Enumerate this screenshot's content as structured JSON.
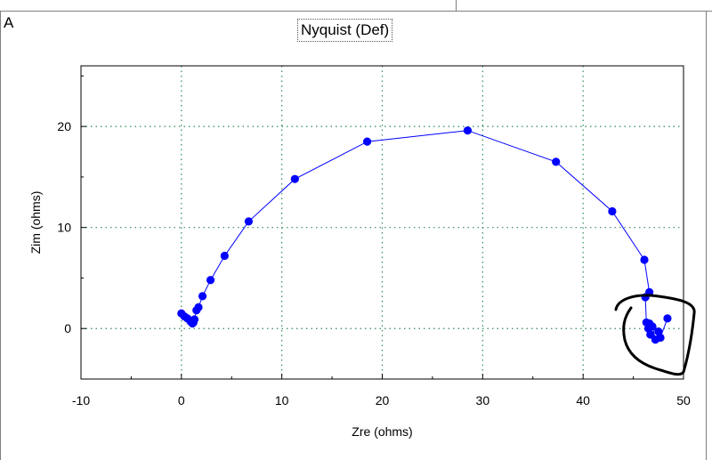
{
  "panel": {
    "label": "A"
  },
  "chart_data": {
    "type": "scatter",
    "title": "Nyquist (Def)",
    "xlabel": "Zre (ohms)",
    "ylabel": "Zim (ohms)",
    "xlim": [
      -10,
      50
    ],
    "ylim": [
      -5,
      26
    ],
    "xticks": [
      -10,
      0,
      10,
      20,
      30,
      40,
      50
    ],
    "yticks": [
      0,
      10,
      20
    ],
    "grid": true,
    "legend": "none",
    "line_color": "#0000ff",
    "marker_color": "#0000ff",
    "annotation_color": "#000000",
    "series": [
      {
        "x": [
          48.4,
          47.7,
          47.5,
          47.2,
          46.9,
          46.7,
          46.6,
          46.5,
          46.3,
          46.2,
          46.6,
          46.1,
          42.9,
          37.3,
          28.5,
          18.5,
          11.3,
          6.7,
          4.3,
          2.9,
          2.1,
          1.7,
          1.5,
          1.3,
          1.2,
          1.1,
          0.9,
          0.6,
          0.3,
          0.0
        ],
        "y": [
          1.0,
          -0.9,
          -0.3,
          -1.1,
          0.2,
          -0.6,
          0.5,
          0.0,
          0.6,
          3.1,
          3.6,
          6.8,
          11.6,
          16.5,
          19.6,
          18.5,
          14.8,
          10.6,
          7.2,
          4.8,
          3.2,
          2.1,
          1.8,
          0.9,
          0.6,
          0.5,
          0.7,
          1.0,
          1.2,
          1.5
        ]
      }
    ]
  }
}
